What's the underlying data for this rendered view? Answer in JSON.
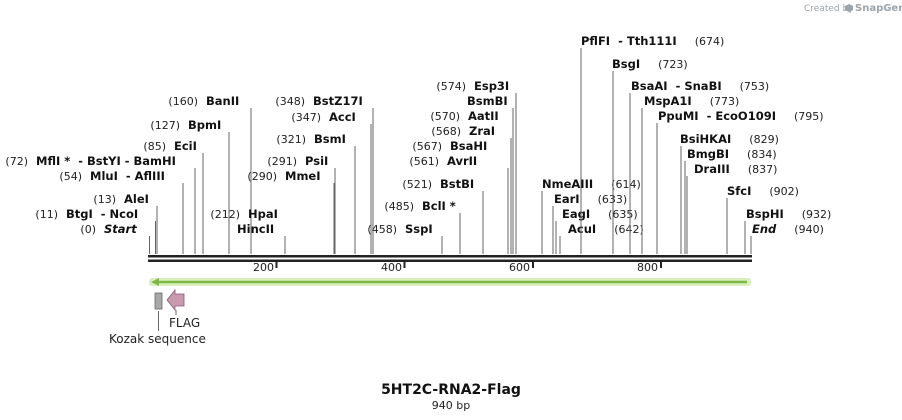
{
  "credit": {
    "prefix": "Created by",
    "brand": "SnapGene"
  },
  "title": "5HT2C-RNA2-Flag",
  "length": "940 bp",
  "sequence_length": 940,
  "axis_ticks": [
    "200",
    "400",
    "600",
    "800"
  ],
  "features": [
    {
      "name": "Kozak sequence",
      "start": 6,
      "end": 16,
      "color": "#a8a8a8"
    },
    {
      "name": "FLAG",
      "start": 19,
      "end": 42,
      "color": "#c89ab0"
    }
  ],
  "orf": {
    "start": 1,
    "end": 940,
    "color": "#9ed063"
  },
  "sites": [
    {
      "pos": 0,
      "pos_text": "(0)",
      "name": "Start",
      "extra": "",
      "style": "end"
    },
    {
      "pos": 11,
      "pos_text": "(11)",
      "name": "BtgI",
      "extra": "- NcoI",
      "style": "normal"
    },
    {
      "pos": 13,
      "pos_text": "(13)",
      "name": "AleI",
      "extra": "",
      "style": "normal"
    },
    {
      "pos": 54,
      "pos_text": "(54)",
      "name": "MluI",
      "extra": "- AflIII",
      "style": "normal"
    },
    {
      "pos": 72,
      "pos_text": "(72)",
      "name": "MflI *",
      "extra": "- BstYI - BamHI",
      "style": "normal"
    },
    {
      "pos": 85,
      "pos_text": "(85)",
      "name": "EciI",
      "extra": "",
      "style": "normal"
    },
    {
      "pos": 127,
      "pos_text": "(127)",
      "name": "BpmI",
      "extra": "",
      "style": "normal"
    },
    {
      "pos": 160,
      "pos_text": "(160)",
      "name": "BanII",
      "extra": "",
      "style": "normal"
    },
    {
      "pos": 212,
      "pos_text": "(212)",
      "name": "HpaI",
      "extra": "",
      "style": "normal"
    },
    {
      "pos": 212,
      "pos_text": "",
      "name": "HincII",
      "extra": "",
      "style": "normal"
    },
    {
      "pos": 290,
      "pos_text": "(290)",
      "name": "MmeI",
      "extra": "",
      "style": "normal"
    },
    {
      "pos": 291,
      "pos_text": "(291)",
      "name": "PsiI",
      "extra": "",
      "style": "normal"
    },
    {
      "pos": 321,
      "pos_text": "(321)",
      "name": "BsmI",
      "extra": "",
      "style": "normal"
    },
    {
      "pos": 347,
      "pos_text": "(347)",
      "name": "AccI",
      "extra": "",
      "style": "normal"
    },
    {
      "pos": 348,
      "pos_text": "(348)",
      "name": "BstZ17I",
      "extra": "",
      "style": "normal"
    },
    {
      "pos": 458,
      "pos_text": "(458)",
      "name": "SspI",
      "extra": "",
      "style": "normal"
    },
    {
      "pos": 485,
      "pos_text": "(485)",
      "name": "BclI *",
      "extra": "",
      "style": "normal"
    },
    {
      "pos": 521,
      "pos_text": "(521)",
      "name": "BstBI",
      "extra": "",
      "style": "normal"
    },
    {
      "pos": 561,
      "pos_text": "(561)",
      "name": "AvrII",
      "extra": "",
      "style": "normal"
    },
    {
      "pos": 567,
      "pos_text": "(567)",
      "name": "BsaHI",
      "extra": "",
      "style": "normal"
    },
    {
      "pos": 568,
      "pos_text": "(568)",
      "name": "ZraI",
      "extra": "",
      "style": "normal"
    },
    {
      "pos": 570,
      "pos_text": "(570)",
      "name": "AatII",
      "extra": "",
      "style": "normal"
    },
    {
      "pos": 570,
      "pos_text": "",
      "name": "BsmBI",
      "extra": "",
      "style": "normal"
    },
    {
      "pos": 574,
      "pos_text": "(574)",
      "name": "Esp3I",
      "extra": "",
      "style": "normal"
    },
    {
      "pos": 614,
      "pos_text": "(614)",
      "name": "NmeAIII",
      "extra": "",
      "style": "normal"
    },
    {
      "pos": 633,
      "pos_text": "(633)",
      "name": "EarI",
      "extra": "",
      "style": "normal"
    },
    {
      "pos": 635,
      "pos_text": "(635)",
      "name": "EagI",
      "extra": "",
      "style": "normal"
    },
    {
      "pos": 642,
      "pos_text": "(642)",
      "name": "AcuI",
      "extra": "",
      "style": "normal"
    },
    {
      "pos": 674,
      "pos_text": "(674)",
      "name": "PflFI",
      "extra": "- Tth111I",
      "style": "normal"
    },
    {
      "pos": 723,
      "pos_text": "(723)",
      "name": "BsgI",
      "extra": "",
      "style": "normal"
    },
    {
      "pos": 753,
      "pos_text": "(753)",
      "name": "BsaAI",
      "extra": "- SnaBI",
      "style": "normal"
    },
    {
      "pos": 773,
      "pos_text": "(773)",
      "name": "MspA1I",
      "extra": "",
      "style": "normal"
    },
    {
      "pos": 795,
      "pos_text": "(795)",
      "name": "PpuMI",
      "extra": "- EcoO109I",
      "style": "normal"
    },
    {
      "pos": 829,
      "pos_text": "(829)",
      "name": "BsiHKAI",
      "extra": "",
      "style": "normal"
    },
    {
      "pos": 834,
      "pos_text": "(834)",
      "name": "BmgBI",
      "extra": "",
      "style": "normal"
    },
    {
      "pos": 837,
      "pos_text": "(837)",
      "name": "DraIII",
      "extra": "",
      "style": "normal"
    },
    {
      "pos": 902,
      "pos_text": "(902)",
      "name": "SfcI",
      "extra": "",
      "style": "normal"
    },
    {
      "pos": 932,
      "pos_text": "(932)",
      "name": "BspHI",
      "extra": "",
      "style": "normal"
    },
    {
      "pos": 940,
      "pos_text": "(940)",
      "name": "End",
      "extra": "",
      "style": "end"
    }
  ]
}
